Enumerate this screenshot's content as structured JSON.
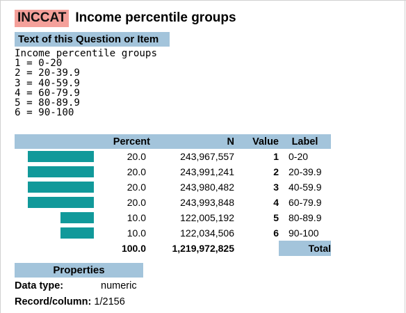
{
  "variable": {
    "name": "INCCAT",
    "title": "Income percentile groups"
  },
  "question_section": {
    "heading": "Text of this Question or Item",
    "text_lines": [
      "Income percentile groups",
      "1 = 0-20",
      "2 = 20-39.9",
      "3 = 40-59.9",
      "4 = 60-79.9",
      "5 = 80-89.9",
      "6 = 90-100"
    ]
  },
  "colors": {
    "badge": "#f4a09a",
    "header_bg": "#a3c4db",
    "bar": "#11999a"
  },
  "frequency_table": {
    "headers": {
      "percent": "Percent",
      "n": "N",
      "value": "Value",
      "label": "Label"
    },
    "rows": [
      {
        "percent": "20.0",
        "n": "243,967,557",
        "value": "1",
        "label": "0-20"
      },
      {
        "percent": "20.0",
        "n": "243,991,241",
        "value": "2",
        "label": "20-39.9"
      },
      {
        "percent": "20.0",
        "n": "243,980,482",
        "value": "3",
        "label": "40-59.9"
      },
      {
        "percent": "20.0",
        "n": "243,993,848",
        "value": "4",
        "label": "60-79.9"
      },
      {
        "percent": "10.0",
        "n": "122,005,192",
        "value": "5",
        "label": "80-89.9"
      },
      {
        "percent": "10.0",
        "n": "122,034,506",
        "value": "6",
        "label": "90-100"
      }
    ],
    "total": {
      "percent": "100.0",
      "n": "1,219,972,825",
      "label": "Total"
    }
  },
  "properties": {
    "heading": "Properties",
    "data_type_label": "Data type:",
    "data_type_value": "numeric",
    "record_column_label": "Record/column:",
    "record_column_value": "1/2156"
  }
}
